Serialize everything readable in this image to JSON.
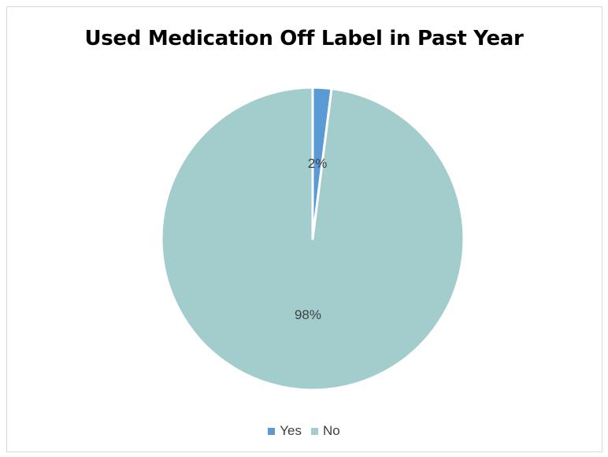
{
  "chart_data": {
    "type": "pie",
    "title": "Used Medication Off Label in Past Year",
    "categories": [
      "Yes",
      "No"
    ],
    "values": [
      2,
      98
    ],
    "data_labels": [
      "2%",
      "98%"
    ],
    "colors": [
      "#5b9bd5",
      "#a2cdcc"
    ],
    "legend_position": "bottom"
  }
}
